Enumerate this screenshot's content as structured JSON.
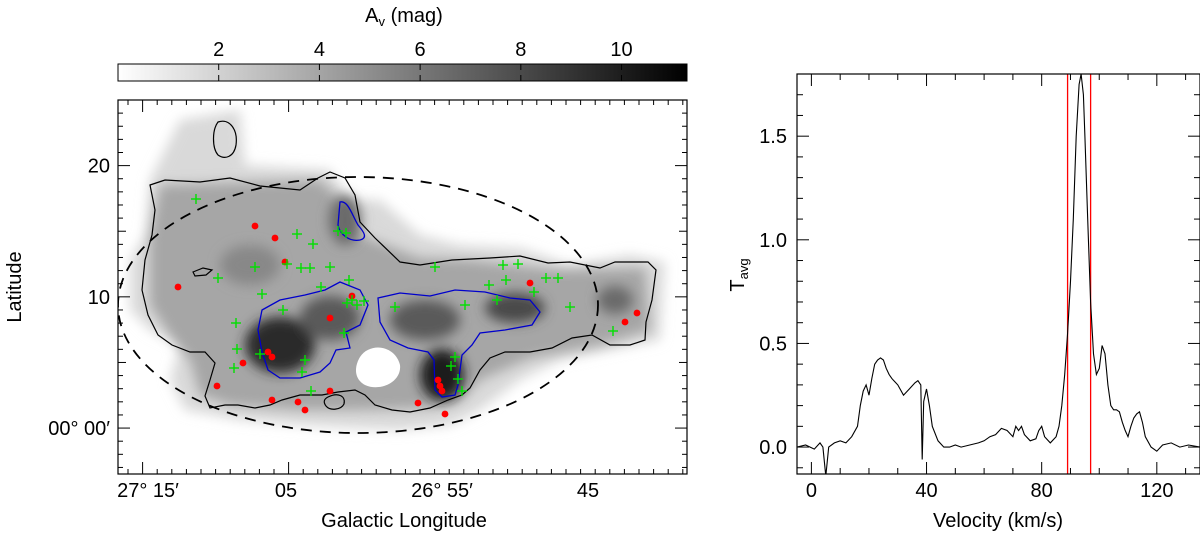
{
  "chart_data": [
    {
      "type": "heatmap",
      "colorbar": {
        "title": "A",
        "title_sub": "v",
        "title_unit": "(mag)",
        "ticks": [
          2,
          4,
          6,
          8,
          10
        ],
        "range": [
          0,
          11.3
        ],
        "colormap": "white-to-black"
      },
      "xlabel": "Galactic Longitude",
      "ylabel": "Latitude",
      "x_tick_labels": [
        "27° 15′",
        "05",
        "26° 55′",
        "45"
      ],
      "y_ticks": [
        10,
        20
      ],
      "y_origin_label": "00° 00′",
      "ylim": [
        -3.5,
        25
      ],
      "contours": [
        {
          "level": "low",
          "color": "#000000"
        },
        {
          "level": "high",
          "color": "#0000cc"
        }
      ],
      "ellipse": {
        "style": "dashed",
        "color": "#000000"
      },
      "markers": [
        {
          "name": "red dots",
          "color": "#ff0000",
          "shape": "dot"
        },
        {
          "name": "green crosses",
          "color": "#00e000",
          "shape": "plus"
        }
      ]
    },
    {
      "type": "line",
      "xlabel": "Velocity (km/s)",
      "ylabel": "T",
      "ylabel_sub": "avg",
      "xlim": [
        -5,
        135
      ],
      "ylim": [
        -0.13,
        1.8
      ],
      "x_ticks": [
        0,
        40,
        80,
        120
      ],
      "y_ticks": [
        0.0,
        0.5,
        1.0,
        1.5
      ],
      "y_tick_labels": [
        "0.0",
        "0.5",
        "1.0",
        "1.5"
      ],
      "vlines": [
        {
          "x": 89,
          "color": "#ff0000"
        },
        {
          "x": 97,
          "color": "#ff0000"
        }
      ],
      "series": [
        {
          "color": "#000000",
          "points": [
            [
              -5,
              0.0
            ],
            [
              -2,
              0.01
            ],
            [
              1,
              -0.01
            ],
            [
              3,
              0.02
            ],
            [
              4,
              0.0
            ],
            [
              5,
              -0.14
            ],
            [
              6,
              0.0
            ],
            [
              8,
              0.02
            ],
            [
              10,
              0.03
            ],
            [
              12,
              0.02
            ],
            [
              14,
              0.05
            ],
            [
              16,
              0.1
            ],
            [
              17,
              0.2
            ],
            [
              18,
              0.27
            ],
            [
              19,
              0.3
            ],
            [
              20,
              0.25
            ],
            [
              21,
              0.33
            ],
            [
              22,
              0.4
            ],
            [
              23,
              0.42
            ],
            [
              24,
              0.43
            ],
            [
              25,
              0.42
            ],
            [
              26,
              0.38
            ],
            [
              27,
              0.35
            ],
            [
              28,
              0.33
            ],
            [
              30,
              0.3
            ],
            [
              32,
              0.25
            ],
            [
              34,
              0.28
            ],
            [
              36,
              0.31
            ],
            [
              37,
              0.32
            ],
            [
              38,
              0.3
            ],
            [
              38.5,
              -0.06
            ],
            [
              39,
              0.22
            ],
            [
              40,
              0.28
            ],
            [
              41,
              0.2
            ],
            [
              42,
              0.1
            ],
            [
              44,
              0.03
            ],
            [
              46,
              0.0
            ],
            [
              48,
              0.0
            ],
            [
              50,
              0.01
            ],
            [
              52,
              0.0
            ],
            [
              55,
              0.01
            ],
            [
              58,
              0.02
            ],
            [
              60,
              0.03
            ],
            [
              62,
              0.05
            ],
            [
              64,
              0.06
            ],
            [
              66,
              0.09
            ],
            [
              68,
              0.08
            ],
            [
              70,
              0.05
            ],
            [
              71,
              0.1
            ],
            [
              72,
              0.08
            ],
            [
              73,
              0.1
            ],
            [
              74,
              0.06
            ],
            [
              76,
              0.03
            ],
            [
              78,
              0.04
            ],
            [
              79,
              0.08
            ],
            [
              80,
              0.1
            ],
            [
              81,
              0.05
            ],
            [
              83,
              0.02
            ],
            [
              85,
              0.05
            ],
            [
              86,
              0.1
            ],
            [
              87,
              0.2
            ],
            [
              88,
              0.35
            ],
            [
              89,
              0.55
            ],
            [
              90,
              0.8
            ],
            [
              91,
              1.1
            ],
            [
              92,
              1.5
            ],
            [
              93,
              1.75
            ],
            [
              93.7,
              1.8
            ],
            [
              94.5,
              1.7
            ],
            [
              95,
              1.5
            ],
            [
              96,
              1.1
            ],
            [
              97,
              0.7
            ],
            [
              98,
              0.45
            ],
            [
              99,
              0.35
            ],
            [
              100,
              0.38
            ],
            [
              101,
              0.49
            ],
            [
              102,
              0.45
            ],
            [
              103,
              0.3
            ],
            [
              104,
              0.2
            ],
            [
              105,
              0.18
            ],
            [
              106,
              0.18
            ],
            [
              107,
              0.17
            ],
            [
              108,
              0.12
            ],
            [
              109,
              0.08
            ],
            [
              110,
              0.05
            ],
            [
              111,
              0.1
            ],
            [
              112,
              0.14
            ],
            [
              113,
              0.16
            ],
            [
              114,
              0.17
            ],
            [
              115,
              0.12
            ],
            [
              116,
              0.05
            ],
            [
              118,
              0.0
            ],
            [
              120,
              -0.02
            ],
            [
              122,
              0.01
            ],
            [
              125,
              0.02
            ],
            [
              128,
              0.0
            ],
            [
              131,
              0.01
            ],
            [
              135,
              0.0
            ]
          ]
        }
      ]
    }
  ]
}
